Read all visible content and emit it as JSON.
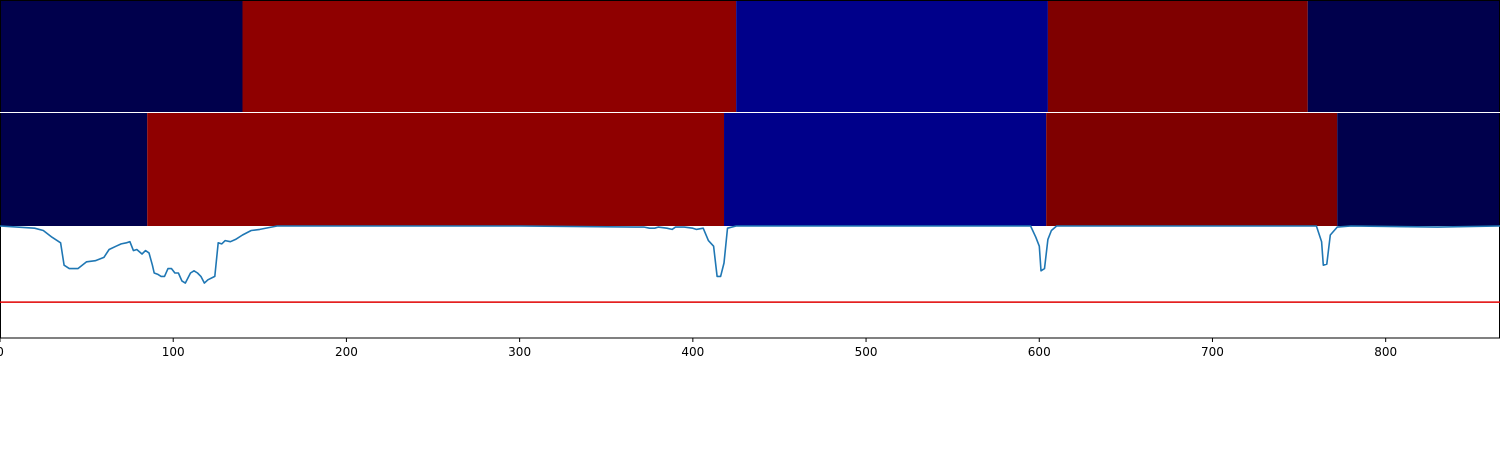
{
  "chart_data": {
    "type": "segmentation-comparison",
    "xlim": [
      0,
      866
    ],
    "x_ticks": [
      0,
      100,
      200,
      300,
      400,
      500,
      600,
      700,
      800
    ],
    "tick_labels": [
      "0",
      "100",
      "200",
      "300",
      "400",
      "500",
      "600",
      "700",
      "800"
    ],
    "ground_truth_segments": [
      {
        "start": 0,
        "end": 140,
        "color": "#00004c"
      },
      {
        "start": 140,
        "end": 425,
        "color": "#8f0000"
      },
      {
        "start": 425,
        "end": 605,
        "color": "#00008a"
      },
      {
        "start": 605,
        "end": 755,
        "color": "#7f0000"
      },
      {
        "start": 755,
        "end": 866,
        "color": "#00004c"
      }
    ],
    "predicted_segments": [
      {
        "start": 0,
        "end": 85,
        "color": "#00004c"
      },
      {
        "start": 85,
        "end": 418,
        "color": "#8f0000"
      },
      {
        "start": 418,
        "end": 604,
        "color": "#00008a"
      },
      {
        "start": 604,
        "end": 772,
        "color": "#7f0000"
      },
      {
        "start": 772,
        "end": 866,
        "color": "#00004c"
      }
    ],
    "signal": {
      "ylim": [
        0,
        1
      ],
      "threshold": 0.32,
      "line_color": "#1f77b4",
      "threshold_color": "#e00000",
      "points": [
        [
          0,
          1.0
        ],
        [
          10,
          0.99
        ],
        [
          20,
          0.98
        ],
        [
          25,
          0.96
        ],
        [
          30,
          0.9
        ],
        [
          35,
          0.85
        ],
        [
          37,
          0.65
        ],
        [
          40,
          0.62
        ],
        [
          45,
          0.62
        ],
        [
          50,
          0.68
        ],
        [
          55,
          0.69
        ],
        [
          60,
          0.72
        ],
        [
          63,
          0.79
        ],
        [
          67,
          0.82
        ],
        [
          70,
          0.84
        ],
        [
          73,
          0.85
        ],
        [
          75,
          0.86
        ],
        [
          77,
          0.78
        ],
        [
          79,
          0.79
        ],
        [
          82,
          0.75
        ],
        [
          84,
          0.78
        ],
        [
          86,
          0.76
        ],
        [
          88,
          0.65
        ],
        [
          89,
          0.58
        ],
        [
          91,
          0.57
        ],
        [
          93,
          0.55
        ],
        [
          95,
          0.55
        ],
        [
          97,
          0.62
        ],
        [
          99,
          0.62
        ],
        [
          101,
          0.58
        ],
        [
          103,
          0.58
        ],
        [
          105,
          0.51
        ],
        [
          107,
          0.49
        ],
        [
          110,
          0.58
        ],
        [
          112,
          0.6
        ],
        [
          114,
          0.58
        ],
        [
          116,
          0.55
        ],
        [
          118,
          0.49
        ],
        [
          120,
          0.52
        ],
        [
          124,
          0.55
        ],
        [
          126,
          0.85
        ],
        [
          128,
          0.84
        ],
        [
          130,
          0.87
        ],
        [
          133,
          0.86
        ],
        [
          136,
          0.88
        ],
        [
          140,
          0.92
        ],
        [
          145,
          0.96
        ],
        [
          150,
          0.97
        ],
        [
          160,
          1.0
        ],
        [
          200,
          1.0
        ],
        [
          300,
          1.0
        ],
        [
          370,
          0.99
        ],
        [
          372,
          0.99
        ],
        [
          375,
          0.98
        ],
        [
          378,
          0.98
        ],
        [
          380,
          0.99
        ],
        [
          385,
          0.98
        ],
        [
          388,
          0.97
        ],
        [
          390,
          0.99
        ],
        [
          395,
          0.99
        ],
        [
          400,
          0.98
        ],
        [
          402,
          0.97
        ],
        [
          406,
          0.98
        ],
        [
          409,
          0.87
        ],
        [
          412,
          0.82
        ],
        [
          414,
          0.55
        ],
        [
          416,
          0.55
        ],
        [
          418,
          0.67
        ],
        [
          420,
          0.98
        ],
        [
          425,
          1.0
        ],
        [
          500,
          1.0
        ],
        [
          595,
          1.0
        ],
        [
          598,
          0.9
        ],
        [
          600,
          0.82
        ],
        [
          601,
          0.6
        ],
        [
          603,
          0.62
        ],
        [
          605,
          0.88
        ],
        [
          607,
          0.96
        ],
        [
          610,
          1.0
        ],
        [
          700,
          1.0
        ],
        [
          760,
          1.0
        ],
        [
          763,
          0.86
        ],
        [
          764,
          0.65
        ],
        [
          766,
          0.66
        ],
        [
          768,
          0.92
        ],
        [
          772,
          0.99
        ],
        [
          780,
          1.0
        ],
        [
          830,
          0.99
        ],
        [
          866,
          1.0
        ]
      ]
    }
  }
}
